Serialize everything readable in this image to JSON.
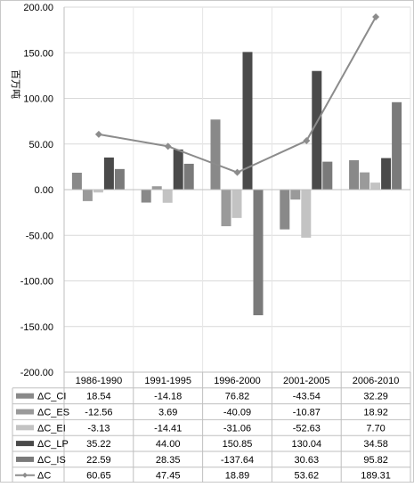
{
  "chart_data": {
    "type": "bar",
    "ylabel": "百万吨",
    "ylim": [
      -200,
      200
    ],
    "y_ticks": [
      "200.00",
      "150.00",
      "100.00",
      "50.00",
      "0.00",
      "-50.00",
      "-100.00",
      "-150.00",
      "-200.00"
    ],
    "grid": true,
    "legend": "table-left",
    "categories": [
      "1986-1990",
      "1991-1995",
      "1996-2000",
      "2001-2005",
      "2006-2010"
    ],
    "series": [
      {
        "name": "ΔC_CI",
        "type": "bar",
        "color": "#898989",
        "values": [
          18.54,
          -14.18,
          76.82,
          -43.54,
          32.29
        ],
        "labels": [
          "18.54",
          "-14.18",
          "76.82",
          "-43.54",
          "32.29"
        ]
      },
      {
        "name": "ΔC_ES",
        "type": "bar",
        "color": "#9a9a9a",
        "values": [
          -12.56,
          3.69,
          -40.09,
          -10.87,
          18.92
        ],
        "labels": [
          "-12.56",
          "3.69",
          "-40.09",
          "-10.87",
          "18.92"
        ]
      },
      {
        "name": "ΔC_EI",
        "type": "bar",
        "color": "#c3c3c3",
        "values": [
          -3.13,
          -14.41,
          -31.06,
          -52.63,
          7.7
        ],
        "labels": [
          "-3.13",
          "-14.41",
          "-31.06",
          "-52.63",
          "7.70"
        ]
      },
      {
        "name": "ΔC_LP",
        "type": "bar",
        "color": "#4a4a4a",
        "values": [
          35.22,
          44.0,
          150.85,
          130.04,
          34.58
        ],
        "labels": [
          "35.22",
          "44.00",
          "150.85",
          "130.04",
          "34.58"
        ]
      },
      {
        "name": "ΔC_IS",
        "type": "bar",
        "color": "#7a7a7a",
        "values": [
          22.59,
          28.35,
          -137.64,
          30.63,
          95.82
        ],
        "labels": [
          "22.59",
          "28.35",
          "-137.64",
          "30.63",
          "95.82"
        ]
      },
      {
        "name": "ΔC",
        "type": "line",
        "color": "#8c8c8c",
        "values": [
          60.65,
          47.45,
          18.89,
          53.62,
          189.31
        ],
        "labels": [
          "60.65",
          "47.45",
          "18.89",
          "53.62",
          "189.31"
        ]
      }
    ]
  }
}
